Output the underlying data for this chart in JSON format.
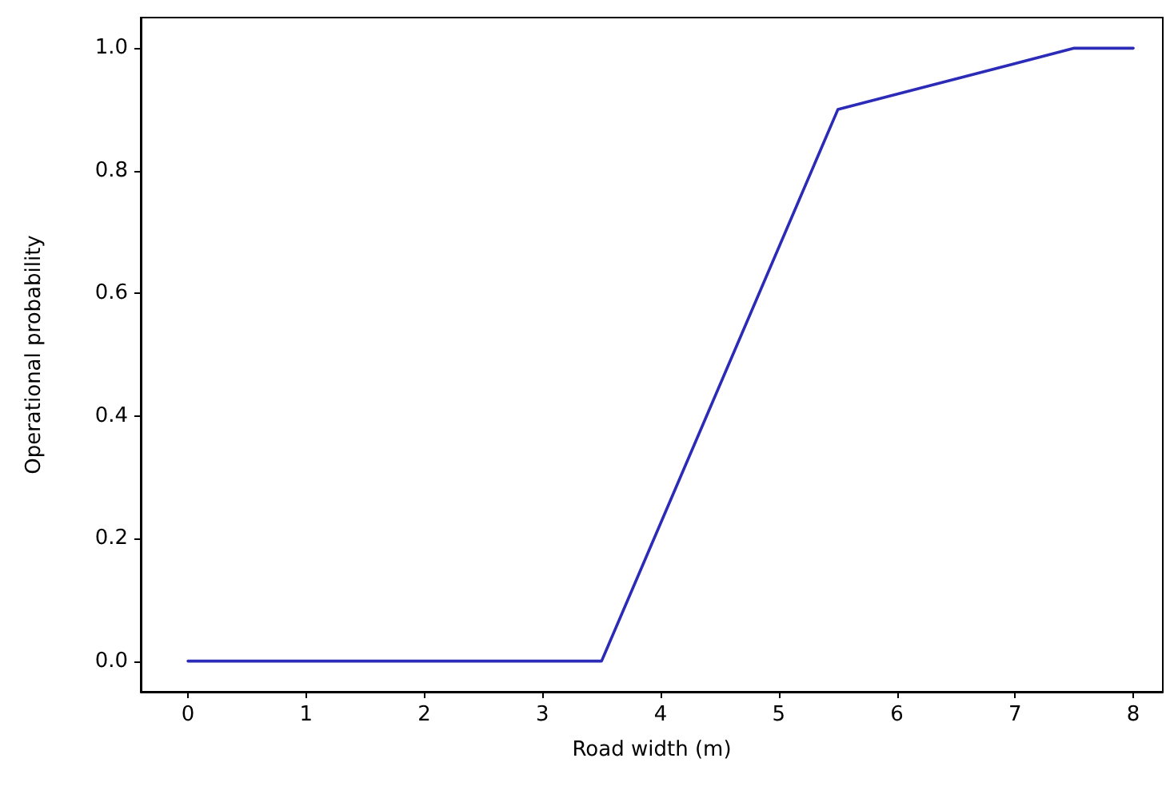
{
  "chart_data": {
    "type": "line",
    "xlabel": "Road width (m)",
    "ylabel": "Operational probability",
    "x": [
      0,
      3.5,
      5.5,
      7.5,
      8
    ],
    "series": [
      {
        "color": "#2b2bb8",
        "values": [
          0,
          0,
          0.9,
          1,
          1
        ]
      }
    ],
    "xlim": [
      -0.4,
      8.25
    ],
    "xticks": [
      0,
      1,
      2,
      3,
      4,
      5,
      6,
      7,
      8
    ],
    "ylim": [
      -0.05,
      1.05
    ],
    "yticks": [
      {
        "value": 0,
        "label": "0.0"
      },
      {
        "value": 0.2,
        "label": "0.2"
      },
      {
        "value": 0.4,
        "label": "0.4"
      },
      {
        "value": 0.6,
        "label": "0.6"
      },
      {
        "value": 0.8,
        "label": "0.8"
      },
      {
        "value": 1,
        "label": "1.0"
      }
    ],
    "grid": false,
    "marker": "none",
    "line_style": "solid"
  }
}
